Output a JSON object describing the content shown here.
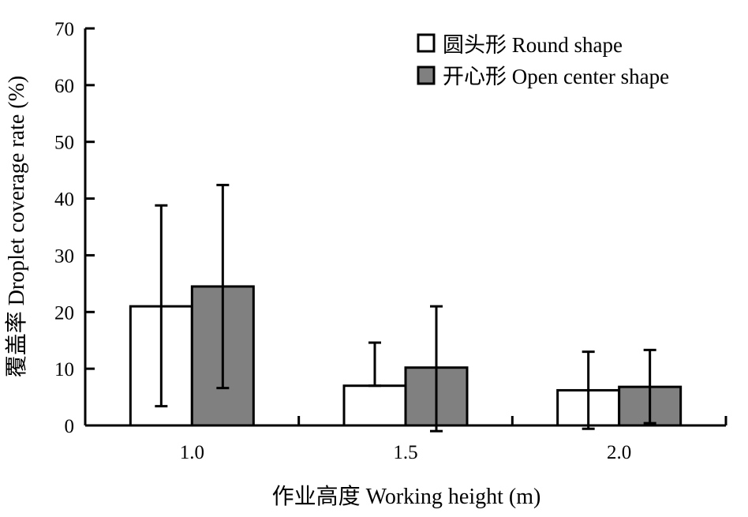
{
  "chart_data": {
    "type": "bar",
    "xlabel": "作业高度 Working height (m)",
    "ylabel": "覆盖率 Droplet coverage rate (%)",
    "ylim": [
      0,
      70
    ],
    "yticks": [
      "0",
      "10",
      "20",
      "30",
      "40",
      "50",
      "60",
      "70"
    ],
    "categories": [
      "1.0",
      "1.5",
      "2.0"
    ],
    "series": [
      {
        "name": "圆头形 Round shape",
        "color": "#ffffff",
        "values": [
          21.0,
          7.0,
          6.2
        ],
        "error_upper": [
          38.8,
          14.6,
          13.0
        ],
        "error_lower": [
          3.4,
          7.0,
          -0.6
        ]
      },
      {
        "name": "开心形 Open center shape",
        "color": "#808080",
        "values": [
          24.5,
          10.2,
          6.8
        ],
        "error_upper": [
          42.4,
          21.0,
          13.3
        ],
        "error_lower": [
          6.6,
          -1.0,
          0.4
        ]
      }
    ],
    "legend_position": "top-right",
    "grid": false
  }
}
